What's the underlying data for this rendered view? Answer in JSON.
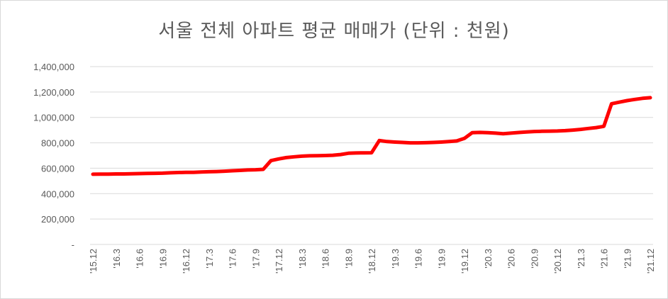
{
  "chart_data": {
    "type": "line",
    "title": "서울 전체 아파트 평균 매매가 (단위 : 천원)",
    "xlabel": "",
    "ylabel": "",
    "ylim": [
      0,
      1400000
    ],
    "yticks": [
      0,
      200000,
      400000,
      600000,
      800000,
      1000000,
      1200000,
      1400000
    ],
    "ytick_labels": [
      "-",
      "200,000",
      "400,000",
      "600,000",
      "800,000",
      "1,000,000",
      "1,200,000",
      "1,400,000"
    ],
    "grid": "horizontal",
    "legend": "none",
    "line_color": "#ff0000",
    "x": [
      "'15.12",
      "'16.1",
      "'16.2",
      "'16.3",
      "'16.4",
      "'16.5",
      "'16.6",
      "'16.7",
      "'16.8",
      "'16.9",
      "'16.10",
      "'16.11",
      "'16.12",
      "'17.1",
      "'17.2",
      "'17.3",
      "'17.4",
      "'17.5",
      "'17.6",
      "'17.7",
      "'17.8",
      "'17.9",
      "'17.10",
      "'17.11",
      "'17.12",
      "'18.1",
      "'18.2",
      "'18.3",
      "'18.4",
      "'18.5",
      "'18.6",
      "'18.7",
      "'18.8",
      "'18.9",
      "'18.10",
      "'18.11",
      "'18.12",
      "'19.1",
      "'19.2",
      "'19.3",
      "'19.4",
      "'19.5",
      "'19.6",
      "'19.7",
      "'19.8",
      "'19.9",
      "'19.10",
      "'19.11",
      "'19.12",
      "'20.1",
      "'20.2",
      "'20.3",
      "'20.4",
      "'20.5",
      "'20.6",
      "'20.7",
      "'20.8",
      "'20.9",
      "'20.10",
      "'20.11",
      "'20.12",
      "'21.1",
      "'21.2",
      "'21.3",
      "'21.4",
      "'21.5",
      "'21.6",
      "'21.7",
      "'21.8",
      "'21.9",
      "'21.10",
      "'21.11",
      "'21.12"
    ],
    "x_tick_labels": [
      "'15.12",
      "'16.3",
      "'16.6",
      "'16.9",
      "'16.12",
      "'17.3",
      "'17.6",
      "'17.9",
      "'17.12",
      "'18.3",
      "'18.6",
      "'18.9",
      "'18.12",
      "'19.3",
      "'19.6",
      "'19.9",
      "'19.12",
      "'20.3",
      "'20.6",
      "'20.9",
      "'20.12",
      "'21.3",
      "'21.6",
      "'21.9",
      "'21.12"
    ],
    "series": [
      {
        "name": "",
        "values": [
          553000,
          554000,
          554000,
          555000,
          555000,
          556000,
          558000,
          559000,
          560000,
          561000,
          564000,
          566000,
          567000,
          568000,
          570000,
          572000,
          574000,
          577000,
          580000,
          583000,
          586000,
          588000,
          591000,
          660000,
          673000,
          684000,
          690000,
          695000,
          698000,
          699000,
          700000,
          702000,
          708000,
          718000,
          720000,
          721000,
          722000,
          818000,
          810000,
          806000,
          803000,
          800000,
          800000,
          801000,
          803000,
          806000,
          810000,
          815000,
          835000,
          880000,
          882000,
          880000,
          876000,
          872000,
          876000,
          881000,
          885000,
          889000,
          891000,
          892000,
          893000,
          896000,
          900000,
          906000,
          913000,
          920000,
          930000,
          1108000,
          1120000,
          1132000,
          1142000,
          1150000,
          1155000
        ]
      }
    ]
  }
}
